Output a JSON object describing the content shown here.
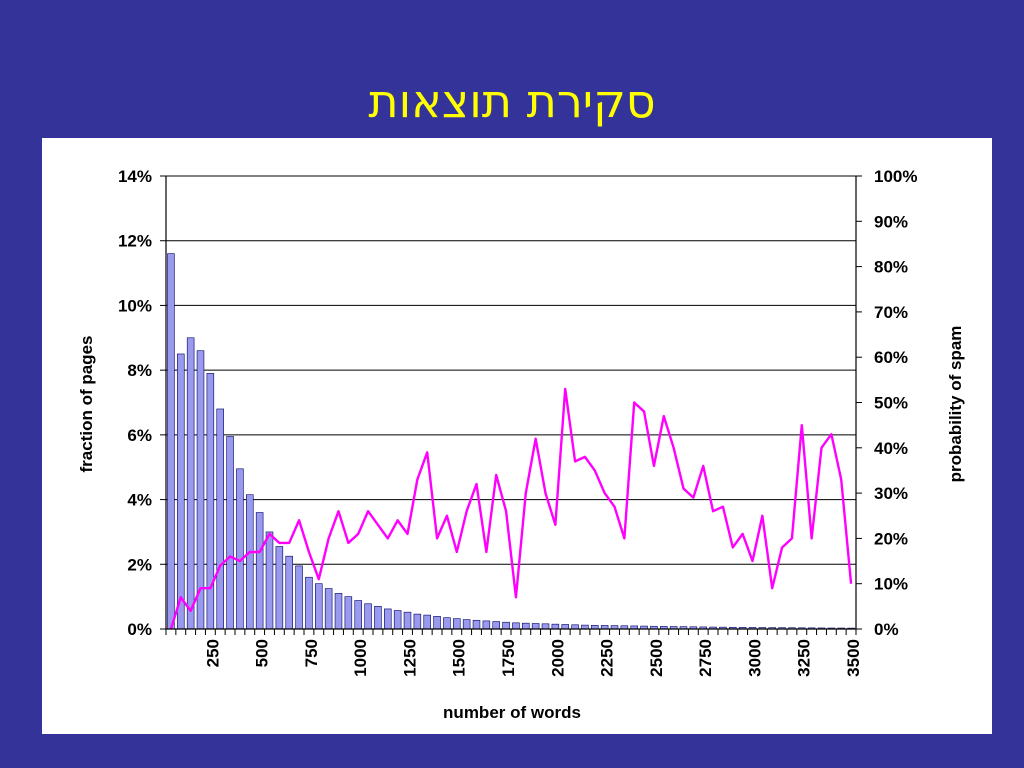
{
  "slide": {
    "title": "סקירת תוצאות"
  },
  "chart_data": {
    "type": "bar+line",
    "x": {
      "label": "number of words",
      "bin_width": 50,
      "range": [
        0,
        3500
      ],
      "ticks": [
        250,
        500,
        750,
        1000,
        1250,
        1500,
        1750,
        2000,
        2250,
        2500,
        2750,
        3000,
        3250,
        3500
      ]
    },
    "y_left": {
      "label": "fraction of pages",
      "range": [
        0,
        14
      ],
      "unit": "%",
      "ticks": [
        "0%",
        "2%",
        "4%",
        "6%",
        "8%",
        "10%",
        "12%",
        "14%"
      ],
      "grid": true
    },
    "y_right": {
      "label": "probability of spam",
      "range": [
        0,
        100
      ],
      "unit": "%",
      "ticks": [
        "0%",
        "10%",
        "20%",
        "30%",
        "40%",
        "50%",
        "60%",
        "70%",
        "80%",
        "90%",
        "100%"
      ]
    },
    "series": [
      {
        "type": "bar",
        "axis": "left",
        "color": "#9999ee",
        "values": [
          11.6,
          8.5,
          9.0,
          8.6,
          7.9,
          6.8,
          5.95,
          4.95,
          4.15,
          3.6,
          3.0,
          2.55,
          2.25,
          1.95,
          1.6,
          1.4,
          1.25,
          1.1,
          1.0,
          0.88,
          0.78,
          0.7,
          0.62,
          0.57,
          0.52,
          0.46,
          0.43,
          0.39,
          0.35,
          0.32,
          0.29,
          0.27,
          0.25,
          0.23,
          0.21,
          0.19,
          0.18,
          0.17,
          0.16,
          0.15,
          0.14,
          0.13,
          0.12,
          0.115,
          0.11,
          0.105,
          0.1,
          0.095,
          0.09,
          0.085,
          0.08,
          0.076,
          0.072,
          0.068,
          0.064,
          0.06,
          0.057,
          0.054,
          0.051,
          0.048,
          0.045,
          0.043,
          0.041,
          0.039,
          0.037,
          0.035,
          0.033,
          0.031,
          0.03,
          0.028
        ]
      },
      {
        "type": "line",
        "axis": "right",
        "color": "#ff00ff",
        "values": [
          0,
          7,
          4,
          9,
          9,
          14,
          16,
          15,
          17,
          17,
          21,
          19,
          19,
          24,
          17,
          11,
          20,
          26,
          19,
          21,
          26,
          23,
          20,
          24,
          21,
          33,
          39,
          20,
          25,
          17,
          26,
          32,
          17,
          34,
          26,
          7,
          30,
          42,
          30,
          23,
          53,
          37,
          38,
          35,
          30,
          27,
          20,
          50,
          48,
          36,
          47,
          40,
          31,
          29,
          36,
          26,
          27,
          18,
          21,
          15,
          25,
          9,
          18,
          20,
          45,
          20,
          40,
          43,
          33,
          10
        ]
      }
    ]
  }
}
